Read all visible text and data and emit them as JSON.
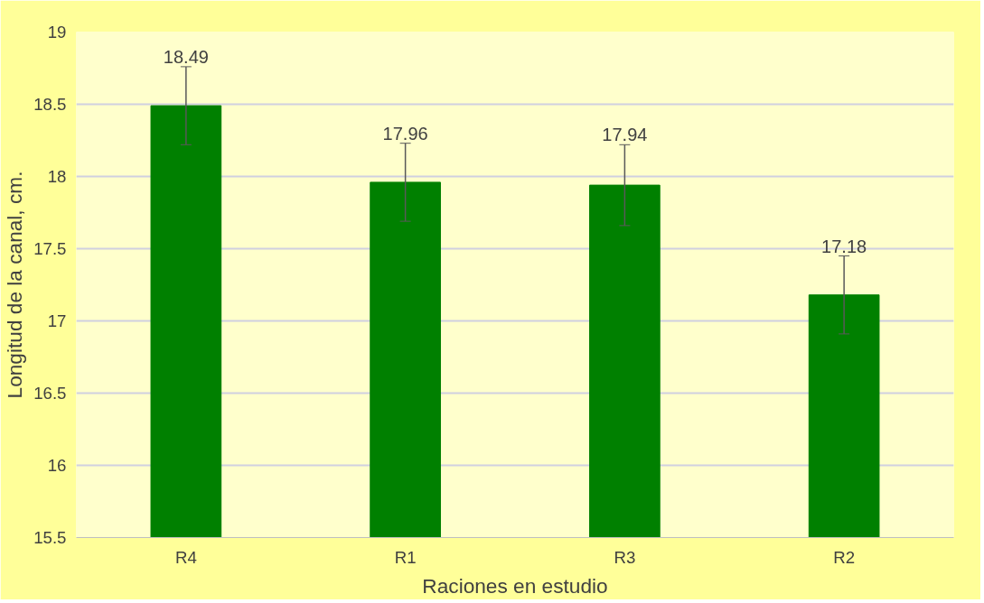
{
  "chart_data": {
    "type": "bar",
    "xlabel": "Raciones en estudio",
    "ylabel": "Longitud de la canal, cm.",
    "categories": [
      "R4",
      "R1",
      "R3",
      "R2"
    ],
    "values": [
      18.49,
      17.96,
      17.94,
      17.18
    ],
    "errors": [
      0.27,
      0.27,
      0.28,
      0.27
    ],
    "color": "#008000",
    "data_labels": true,
    "ylim": [
      15.5,
      19
    ],
    "yticks": [
      15.5,
      16,
      16.5,
      17,
      17.5,
      18,
      18.5,
      19
    ],
    "grid": "y"
  }
}
